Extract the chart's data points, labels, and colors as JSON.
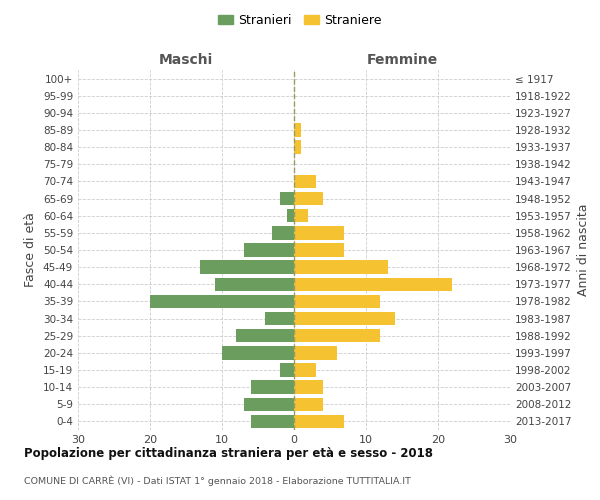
{
  "age_groups_bottom_to_top": [
    "0-4",
    "5-9",
    "10-14",
    "15-19",
    "20-24",
    "25-29",
    "30-34",
    "35-39",
    "40-44",
    "45-49",
    "50-54",
    "55-59",
    "60-64",
    "65-69",
    "70-74",
    "75-79",
    "80-84",
    "85-89",
    "90-94",
    "95-99",
    "100+"
  ],
  "birth_years_bottom_to_top": [
    "2013-2017",
    "2008-2012",
    "2003-2007",
    "1998-2002",
    "1993-1997",
    "1988-1992",
    "1983-1987",
    "1978-1982",
    "1973-1977",
    "1968-1972",
    "1963-1967",
    "1958-1962",
    "1953-1957",
    "1948-1952",
    "1943-1947",
    "1938-1942",
    "1933-1937",
    "1928-1932",
    "1923-1927",
    "1918-1922",
    "≤ 1917"
  ],
  "maschi_bottom_to_top": [
    6,
    7,
    6,
    2,
    10,
    8,
    4,
    20,
    11,
    13,
    7,
    3,
    1,
    2,
    0,
    0,
    0,
    0,
    0,
    0,
    0
  ],
  "femmine_bottom_to_top": [
    7,
    4,
    4,
    3,
    6,
    12,
    14,
    12,
    22,
    13,
    7,
    7,
    2,
    4,
    3,
    0,
    1,
    1,
    0,
    0,
    0
  ],
  "color_maschi": "#6b9e5e",
  "color_femmine": "#f5c232",
  "title": "Popolazione per cittadinanza straniera per età e sesso - 2018",
  "subtitle": "COMUNE DI CARRÈ (VI) - Dati ISTAT 1° gennaio 2018 - Elaborazione TUTTITALIA.IT",
  "ylabel_left": "Fasce di età",
  "ylabel_right": "Anni di nascita",
  "legend_maschi": "Stranieri",
  "legend_femmine": "Straniere",
  "xlim": 30,
  "background_color": "#ffffff",
  "grid_color": "#cccccc"
}
